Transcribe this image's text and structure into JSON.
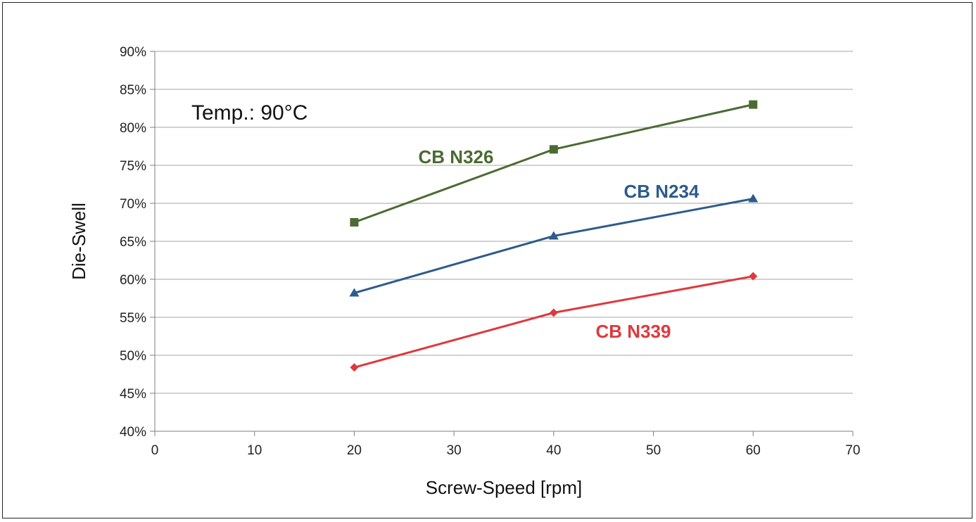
{
  "chart_data": {
    "type": "line",
    "xlabel": "Screw-Speed [rpm]",
    "ylabel": "Die-Swell",
    "xlim": [
      0,
      70
    ],
    "ylim": [
      0.4,
      0.9
    ],
    "x_ticks": [
      "0",
      "10",
      "20",
      "30",
      "40",
      "50",
      "60",
      "70"
    ],
    "y_ticks": [
      "40%",
      "45%",
      "50%",
      "55%",
      "60%",
      "65%",
      "70%",
      "75%",
      "80%",
      "85%",
      "90%"
    ],
    "grid": "horizontal",
    "annotation": "Temp.: 90°C",
    "series": [
      {
        "name": "CB N326",
        "color": "#4a6b32",
        "marker": "square",
        "x": [
          20,
          40,
          60
        ],
        "y": [
          0.675,
          0.771,
          0.83
        ]
      },
      {
        "name": "CB N234",
        "color": "#2d5b8c",
        "marker": "triangle",
        "x": [
          20,
          40,
          60
        ],
        "y": [
          0.582,
          0.657,
          0.706
        ]
      },
      {
        "name": "CB N339",
        "color": "#e0383c",
        "marker": "diamond",
        "x": [
          20,
          40,
          60
        ],
        "y": [
          0.484,
          0.556,
          0.604
        ]
      }
    ]
  }
}
